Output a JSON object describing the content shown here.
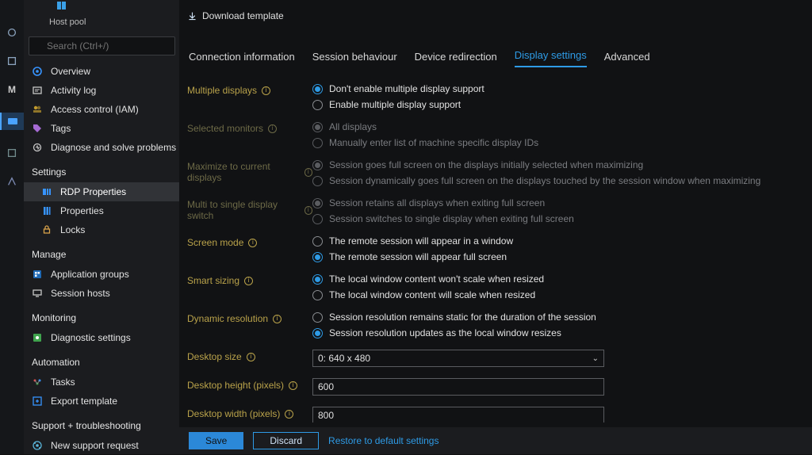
{
  "colors": {
    "bg_main": "#111214",
    "bg_side": "#1b1c1f",
    "bg_rail": "#15171a",
    "accent": "#2e9be6",
    "label_yellow": "#b9a24a",
    "label_yellow_dim": "#6d6a47",
    "text": "#e2e2e2",
    "text_dim": "#7a7c80",
    "border": "#5a5c60"
  },
  "header": {
    "resource_type": "Host pool",
    "search_placeholder": "Search (Ctrl+/)",
    "download_template": "Download template"
  },
  "sidenav": {
    "items_top": [
      {
        "label": "Overview",
        "icon": "overview",
        "color": "#3794ff"
      },
      {
        "label": "Activity log",
        "icon": "activity",
        "color": "#c8c8c8"
      },
      {
        "label": "Access control (IAM)",
        "icon": "iam",
        "color": "#c29b2e"
      },
      {
        "label": "Tags",
        "icon": "tags",
        "color": "#a66bd4"
      },
      {
        "label": "Diagnose and solve problems",
        "icon": "diagnose",
        "color": "#c8c8c8"
      }
    ],
    "section_settings": "Settings",
    "settings_items": [
      {
        "label": "RDP Properties",
        "icon": "rdp",
        "color": "#3794ff",
        "active": true
      },
      {
        "label": "Properties",
        "icon": "properties",
        "color": "#3794ff"
      },
      {
        "label": "Locks",
        "icon": "locks",
        "color": "#d8a24a"
      }
    ],
    "section_manage": "Manage",
    "manage_items": [
      {
        "label": "Application groups",
        "icon": "appgroups",
        "color": "#1f6ab5"
      },
      {
        "label": "Session hosts",
        "icon": "sessionhosts",
        "color": "#c8c8c8"
      }
    ],
    "section_monitoring": "Monitoring",
    "monitoring_items": [
      {
        "label": "Diagnostic settings",
        "icon": "diag",
        "color": "#3fa34d"
      }
    ],
    "section_automation": "Automation",
    "automation_items": [
      {
        "label": "Tasks",
        "icon": "tasks",
        "color": "#3fa34d"
      },
      {
        "label": "Export template",
        "icon": "export",
        "color": "#3794ff"
      }
    ],
    "section_support": "Support + troubleshooting",
    "support_items": [
      {
        "label": "New support request",
        "icon": "support",
        "color": "#59b4d9"
      }
    ]
  },
  "tabs": [
    {
      "label": "Connection information",
      "active": false
    },
    {
      "label": "Session behaviour",
      "active": false
    },
    {
      "label": "Device redirection",
      "active": false
    },
    {
      "label": "Display settings",
      "active": true
    },
    {
      "label": "Advanced",
      "active": false
    }
  ],
  "form": {
    "multiple_displays": {
      "label": "Multiple displays",
      "options": [
        {
          "text": "Don't enable multiple display support",
          "selected": true
        },
        {
          "text": "Enable multiple display support",
          "selected": false
        }
      ]
    },
    "selected_monitors": {
      "label": "Selected monitors",
      "disabled": true,
      "options": [
        {
          "text": "All displays",
          "selected": true
        },
        {
          "text": "Manually enter list of machine specific display IDs",
          "selected": false
        }
      ]
    },
    "maximize": {
      "label": "Maximize to current displays",
      "disabled": true,
      "options": [
        {
          "text": "Session goes full screen on the displays initially selected when maximizing",
          "selected": true
        },
        {
          "text": "Session dynamically goes full screen on the displays touched by the session window when maximizing",
          "selected": false
        }
      ]
    },
    "multi_to_single": {
      "label": "Multi to single display switch",
      "disabled": true,
      "options": [
        {
          "text": "Session retains all displays when exiting full screen",
          "selected": true
        },
        {
          "text": "Session switches to single display when exiting full screen",
          "selected": false
        }
      ]
    },
    "screen_mode": {
      "label": "Screen mode",
      "options": [
        {
          "text": "The remote session will appear in a window",
          "selected": false
        },
        {
          "text": "The remote session will appear full screen",
          "selected": true
        }
      ]
    },
    "smart_sizing": {
      "label": "Smart sizing",
      "options": [
        {
          "text": "The local window content won't scale when resized",
          "selected": true
        },
        {
          "text": "The local window content will scale when resized",
          "selected": false
        }
      ]
    },
    "dynamic_resolution": {
      "label": "Dynamic resolution",
      "options": [
        {
          "text": "Session resolution remains static for the duration of the session",
          "selected": false
        },
        {
          "text": "Session resolution updates as the local window resizes",
          "selected": true
        }
      ]
    },
    "desktop_size": {
      "label": "Desktop size",
      "value": "0: 640 x 480"
    },
    "desktop_height": {
      "label": "Desktop height (pixels)",
      "value": "600"
    },
    "desktop_width": {
      "label": "Desktop width (pixels)",
      "value": "800"
    }
  },
  "footer": {
    "save": "Save",
    "discard": "Discard",
    "restore": "Restore to default settings"
  }
}
